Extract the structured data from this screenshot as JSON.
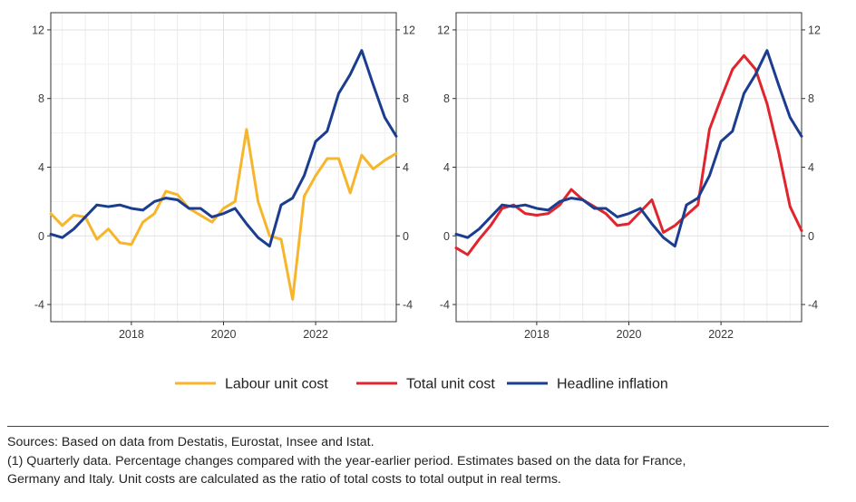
{
  "chart_data": [
    {
      "type": "line",
      "x": [
        2016.25,
        2016.5,
        2016.75,
        2017,
        2017.25,
        2017.5,
        2017.75,
        2018,
        2018.25,
        2018.5,
        2018.75,
        2019,
        2019.25,
        2019.5,
        2019.75,
        2020,
        2020.25,
        2020.5,
        2020.75,
        2021,
        2021.25,
        2021.5,
        2021.75,
        2022,
        2022.25,
        2022.5,
        2022.75,
        2023,
        2023.25,
        2023.5,
        2023.75
      ],
      "xticks": [
        "2018",
        "2020",
        "2022"
      ],
      "xtick_values": [
        2018,
        2020,
        2022
      ],
      "xlim": [
        2016.25,
        2023.75
      ],
      "ylim": [
        -5,
        13
      ],
      "yticks": [
        "-4",
        "0",
        "4",
        "8",
        "12"
      ],
      "ytick_values": [
        -4,
        0,
        4,
        8,
        12
      ],
      "grid": true,
      "series": [
        {
          "name": "Labour unit cost",
          "color": "#f7b52c",
          "values": [
            1.3,
            0.6,
            1.2,
            1.1,
            -0.2,
            0.4,
            -0.4,
            -0.5,
            0.8,
            1.3,
            2.6,
            2.4,
            1.6,
            1.2,
            0.8,
            1.6,
            2.0,
            6.2,
            2.0,
            0.0,
            -0.2,
            -3.7,
            2.3,
            3.5,
            4.5,
            4.5,
            2.5,
            4.7,
            3.9,
            4.4,
            4.8
          ]
        },
        {
          "name": "Headline inflation",
          "color": "#1b3d8f",
          "values": [
            0.1,
            -0.1,
            0.4,
            1.1,
            1.8,
            1.7,
            1.8,
            1.6,
            1.5,
            2.0,
            2.2,
            2.1,
            1.6,
            1.6,
            1.1,
            1.3,
            1.6,
            0.7,
            -0.1,
            -0.6,
            1.8,
            2.2,
            3.5,
            5.5,
            6.1,
            8.3,
            9.4,
            10.8,
            8.8,
            6.9,
            5.8
          ]
        }
      ]
    },
    {
      "type": "line",
      "x": [
        2016.25,
        2016.5,
        2016.75,
        2017,
        2017.25,
        2017.5,
        2017.75,
        2018,
        2018.25,
        2018.5,
        2018.75,
        2019,
        2019.25,
        2019.5,
        2019.75,
        2020,
        2020.25,
        2020.5,
        2020.75,
        2021,
        2021.25,
        2021.5,
        2021.75,
        2022,
        2022.25,
        2022.5,
        2022.75,
        2023,
        2023.25,
        2023.5,
        2023.75
      ],
      "xticks": [
        "2018",
        "2020",
        "2022"
      ],
      "xtick_values": [
        2018,
        2020,
        2022
      ],
      "xlim": [
        2016.25,
        2023.75
      ],
      "ylim": [
        -5,
        13
      ],
      "yticks": [
        "-4",
        "0",
        "4",
        "8",
        "12"
      ],
      "ytick_values": [
        -4,
        0,
        4,
        8,
        12
      ],
      "grid": true,
      "series": [
        {
          "name": "Total unit cost",
          "color": "#e0252d",
          "values": [
            -0.7,
            -1.1,
            -0.2,
            0.6,
            1.6,
            1.8,
            1.3,
            1.2,
            1.3,
            1.8,
            2.7,
            2.1,
            1.7,
            1.3,
            0.6,
            0.7,
            1.4,
            2.1,
            0.2,
            0.6,
            1.2,
            1.8,
            6.2,
            8.0,
            9.7,
            10.5,
            9.7,
            7.7,
            4.9,
            1.7,
            0.3
          ]
        },
        {
          "name": "Headline inflation",
          "color": "#1b3d8f",
          "values": [
            0.1,
            -0.1,
            0.4,
            1.1,
            1.8,
            1.7,
            1.8,
            1.6,
            1.5,
            2.0,
            2.2,
            2.1,
            1.6,
            1.6,
            1.1,
            1.3,
            1.6,
            0.7,
            -0.1,
            -0.6,
            1.8,
            2.2,
            3.5,
            5.5,
            6.1,
            8.3,
            9.4,
            10.8,
            8.8,
            6.9,
            5.8
          ]
        }
      ]
    }
  ],
  "legend": {
    "items": [
      {
        "label": "Labour unit cost",
        "color": "#f7b52c"
      },
      {
        "label": "Total unit cost",
        "color": "#e0252d"
      },
      {
        "label": "Headline inflation",
        "color": "#1b3d8f"
      }
    ]
  },
  "notes": {
    "sources": "Sources: Based on data from Destatis, Eurostat, Insee and Istat.",
    "note_line1": "(1) Quarterly data. Percentage changes compared with the year-earlier period. Estimates based on the data for France,",
    "note_line2": "Germany and Italy. Unit costs are calculated as the ratio of total costs to total output in real terms."
  }
}
